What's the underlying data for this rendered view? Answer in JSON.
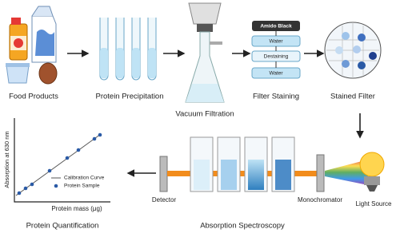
{
  "steps": {
    "food": "Food Products",
    "precipitation": "Protein Precipitation",
    "filtration": "Vacuum Filtration",
    "staining": "Filter Staining",
    "stained": "Stained Filter",
    "spectroscopy": "Absorption Spectroscopy",
    "quantification": "Protein Quantification"
  },
  "filter_layers": [
    "Amido Black",
    "Water",
    "Destaining",
    "Water"
  ],
  "spectroscopy": {
    "detector": "Detector",
    "monochromator": "Monochromator",
    "light_source": "Light Source"
  },
  "graph": {
    "y_label": "Absorption at 630 nm",
    "x_label": "Protein mass (μg)",
    "legend": [
      "Calibration Curve",
      "Protein Sample"
    ]
  }
}
